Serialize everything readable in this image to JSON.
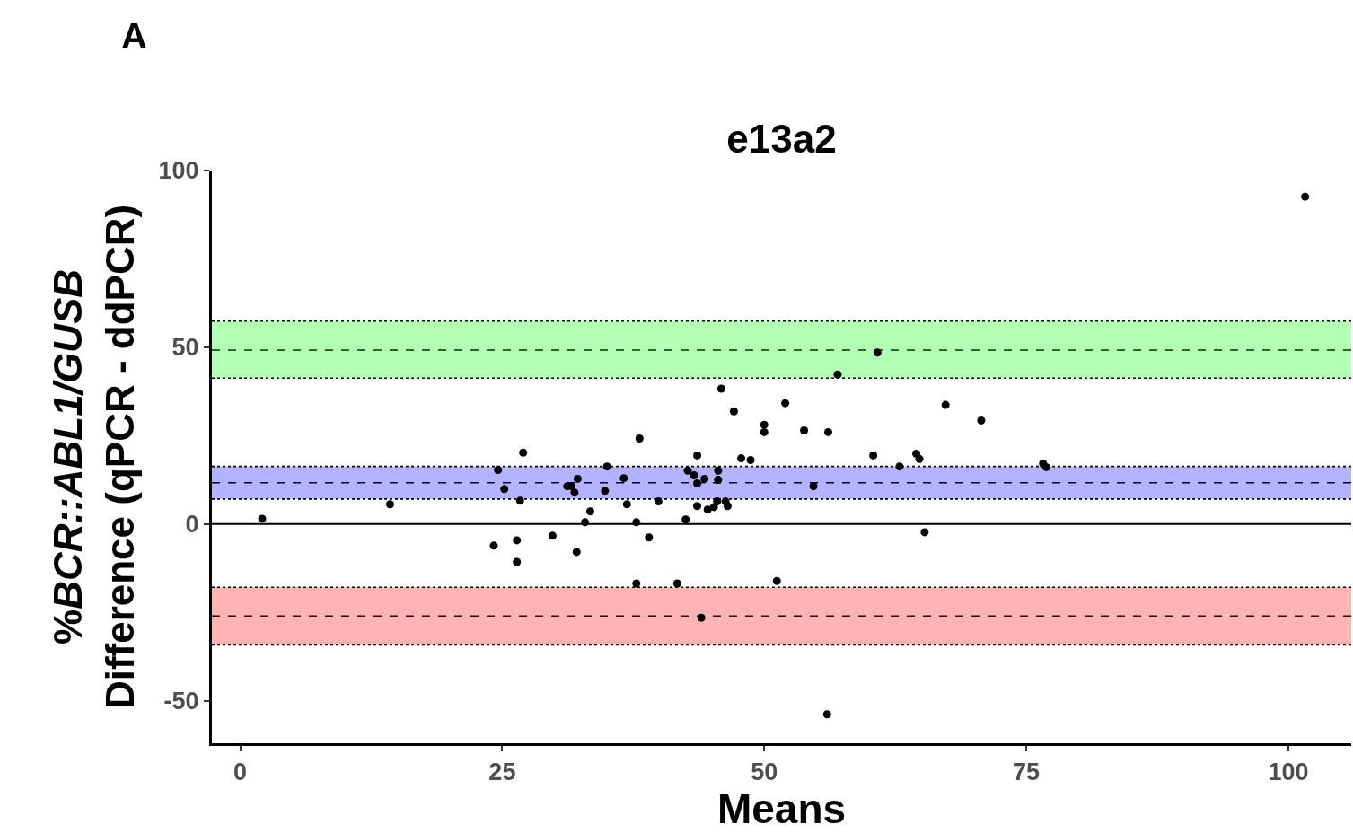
{
  "chart_data": {
    "type": "scatter",
    "title": "e13a2",
    "xlabel": "Means",
    "ylabel": "%BCR::ABL1/GUSB\nDifference (qPCR - ddPCR)",
    "annotations": [
      "A"
    ],
    "x": [
      2.1,
      14.3,
      24.2,
      24.6,
      25.2,
      26.4,
      26.4,
      26.7,
      27.0,
      29.8,
      31.2,
      31.6,
      31.9,
      32.2,
      32.1,
      32.9,
      33.4,
      35.0,
      34.8,
      36.6,
      36.9,
      37.8,
      38.1,
      37.8,
      39.0,
      39.9,
      41.7,
      42.5,
      42.7,
      43.3,
      43.6,
      43.6,
      43.6,
      44.0,
      44.3,
      44.6,
      45.2,
      45.5,
      45.6,
      45.6,
      45.9,
      46.3,
      46.5,
      47.1,
      47.8,
      48.7,
      50.0,
      50.0,
      52.0,
      51.2,
      53.8,
      54.7,
      56.1,
      56.0,
      57.0,
      60.8,
      60.4,
      62.9,
      64.5,
      64.8,
      65.3,
      67.3,
      70.7,
      76.6,
      76.9,
      101.6
    ],
    "values": [
      1.5,
      5.6,
      -6.1,
      15.3,
      9.9,
      -4.6,
      -10.7,
      6.6,
      20.2,
      -3.3,
      10.7,
      10.7,
      8.9,
      12.8,
      -7.9,
      0.5,
      3.6,
      16.3,
      9.4,
      13.0,
      5.6,
      0.5,
      24.2,
      -16.8,
      -3.8,
      6.4,
      -16.8,
      1.3,
      15.1,
      13.8,
      19.4,
      11.5,
      5.1,
      -26.5,
      12.8,
      4.1,
      4.8,
      6.4,
      15.1,
      12.5,
      38.3,
      6.4,
      5.1,
      31.9,
      18.6,
      18.1,
      28.1,
      26.0,
      34.2,
      -16.1,
      26.5,
      10.7,
      26.0,
      -53.8,
      42.3,
      48.5,
      19.4,
      16.3,
      19.9,
      18.4,
      -2.3,
      33.7,
      29.3,
      17.1,
      16.1,
      92.6
    ],
    "color": "#000000",
    "marker": "circle",
    "xlim": [
      -2.7,
      106
    ],
    "ylim": [
      -62,
      100
    ],
    "xticks": [
      0,
      25,
      50,
      75,
      100
    ],
    "yticks": [
      -50,
      0,
      50,
      100
    ],
    "bands": [
      {
        "axis": "y",
        "from": 41.3,
        "to": 57.4,
        "color": "#b3ffb3"
      },
      {
        "axis": "y",
        "from": 7.1,
        "to": 16.3,
        "color": "#b3b3ff"
      },
      {
        "axis": "y",
        "from": -34.2,
        "to": -17.9,
        "color": "#ffb3b3"
      }
    ],
    "ref_lines": [
      {
        "axis": "y",
        "value": 0,
        "color": "#000000",
        "line_style": "solid"
      },
      {
        "axis": "y",
        "value": 49.2,
        "color": "#003300",
        "line_style": "dashed"
      },
      {
        "axis": "y",
        "value": 57.4,
        "color": "#000000",
        "line_style": "dotted"
      },
      {
        "axis": "y",
        "value": 41.3,
        "color": "#000000",
        "line_style": "dotted"
      },
      {
        "axis": "y",
        "value": 11.7,
        "color": "#000033",
        "line_style": "dashed"
      },
      {
        "axis": "y",
        "value": 16.3,
        "color": "#000000",
        "line_style": "dotted"
      },
      {
        "axis": "y",
        "value": 7.1,
        "color": "#000000",
        "line_style": "dotted"
      },
      {
        "axis": "y",
        "value": -26.0,
        "color": "#330000",
        "line_style": "dashed"
      },
      {
        "axis": "y",
        "value": -17.9,
        "color": "#000000",
        "line_style": "dotted"
      },
      {
        "axis": "y",
        "value": -34.2,
        "color": "#000000",
        "line_style": "dotted"
      }
    ],
    "grid": false,
    "legend": false
  }
}
